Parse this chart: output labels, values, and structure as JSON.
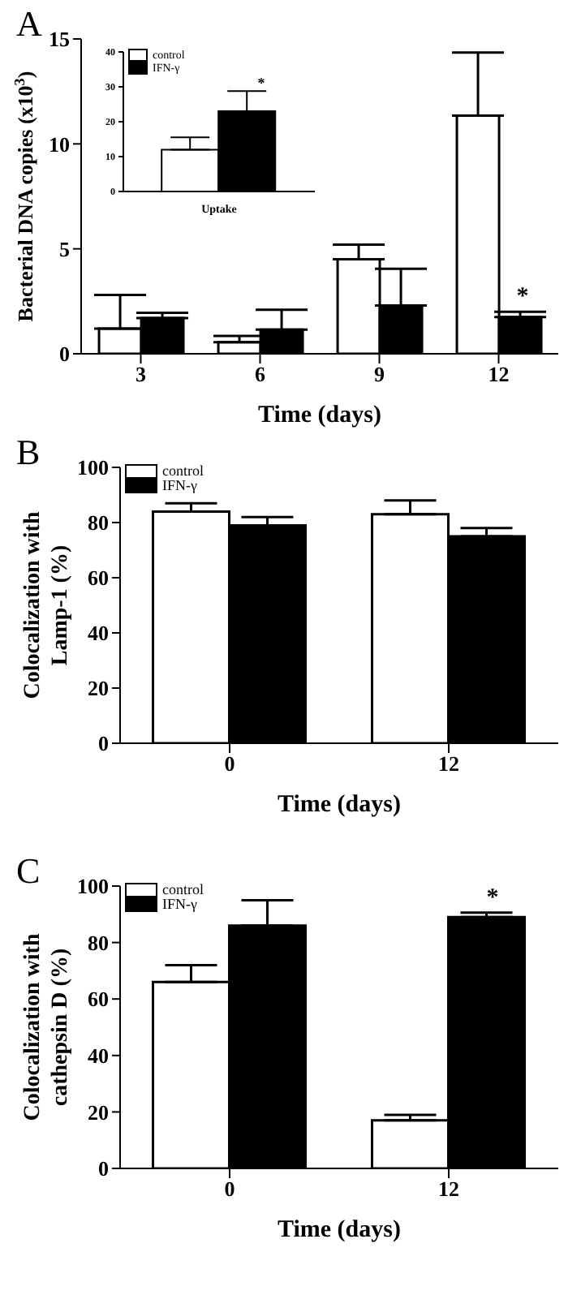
{
  "chart_data": [
    {
      "type": "bar",
      "title": "A",
      "categories": [
        "3",
        "6",
        "9",
        "12"
      ],
      "xlabel": "Time (days)",
      "ylabel": "Bacterial DNA copies (x10$^{3}$)",
      "ylim": [
        0,
        15
      ],
      "yticks": [
        0,
        5,
        10,
        15
      ],
      "grid": false,
      "legend": false,
      "series": [
        {
          "color": "#ffffff",
          "values": [
            1.2,
            0.55,
            4.5,
            11.35
          ],
          "errors": [
            [
              1.2,
              2.8
            ],
            [
              0.55,
              0.85
            ],
            [
              4.5,
              5.2
            ],
            [
              11.35,
              14.35
            ]
          ]
        },
        {
          "color": "#000000",
          "values": [
            1.7,
            1.15,
            2.3,
            1.75
          ],
          "errors": [
            [
              1.7,
              1.95
            ],
            [
              1.15,
              2.1
            ],
            [
              2.3,
              4.05
            ],
            [
              1.75,
              2.0
            ]
          ]
        }
      ],
      "annotations": [
        "*"
      ]
    },
    {
      "type": "bar",
      "categories": [
        "Uptake"
      ],
      "ylim": [
        0,
        40
      ],
      "yticks": [
        0,
        10,
        20,
        30,
        40
      ],
      "grid": false,
      "legend": "top left",
      "series": [
        {
          "name": "control",
          "color": "#ffffff",
          "values": [
            12
          ],
          "errors": [
            [
              12,
              15.5
            ]
          ]
        },
        {
          "name": "IFN-γ",
          "color": "#000000",
          "values": [
            23
          ],
          "errors": [
            [
              23,
              28.8
            ]
          ]
        }
      ],
      "annotations": [
        "*"
      ]
    },
    {
      "type": "bar",
      "title": "B",
      "categories": [
        "0",
        "12"
      ],
      "xlabel": "Time (days)",
      "ylabel": "Colocalization with Lamp-1 (%)",
      "ylim": [
        0,
        100
      ],
      "yticks": [
        0,
        20,
        40,
        60,
        80,
        100
      ],
      "grid": false,
      "legend": "top left",
      "series": [
        {
          "name": "control",
          "color": "#ffffff",
          "values": [
            84,
            83
          ],
          "errors": [
            [
              84,
              87
            ],
            [
              83,
              88
            ]
          ]
        },
        {
          "name": "IFN-γ",
          "color": "#000000",
          "values": [
            79,
            75
          ],
          "errors": [
            [
              79,
              82
            ],
            [
              75,
              78
            ]
          ]
        }
      ]
    },
    {
      "type": "bar",
      "title": "C",
      "categories": [
        "0",
        "12"
      ],
      "xlabel": "Time (days)",
      "ylabel": "Colocalization with cathepsin D (%)",
      "ylim": [
        0,
        100
      ],
      "yticks": [
        0,
        20,
        40,
        60,
        80,
        100
      ],
      "grid": false,
      "legend": "top left",
      "series": [
        {
          "name": "control",
          "color": "#ffffff",
          "values": [
            66,
            17
          ],
          "errors": [
            [
              66,
              72
            ],
            [
              17,
              19
            ]
          ]
        },
        {
          "name": "IFN-γ",
          "color": "#000000",
          "values": [
            86,
            89
          ],
          "errors": [
            [
              86,
              95
            ],
            [
              89,
              90.6
            ]
          ]
        }
      ],
      "annotations": [
        "*"
      ]
    }
  ]
}
